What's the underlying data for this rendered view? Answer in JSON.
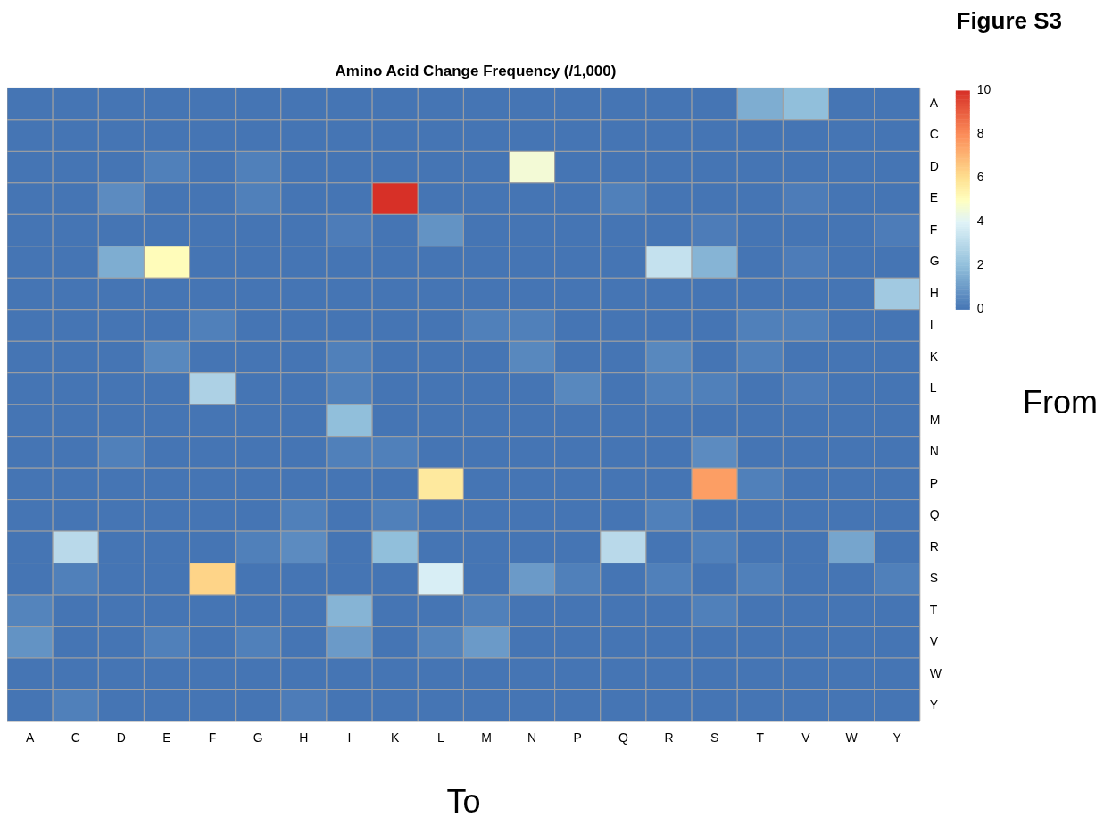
{
  "chart_data": {
    "type": "heatmap",
    "title": "Amino Acid Change Frequency (/1,000)",
    "xlabel": "To",
    "ylabel": "From",
    "annotations": [
      "Figure S3"
    ],
    "categories": [
      "A",
      "C",
      "D",
      "E",
      "F",
      "G",
      "H",
      "I",
      "K",
      "L",
      "M",
      "N",
      "P",
      "Q",
      "R",
      "S",
      "T",
      "V",
      "W",
      "Y"
    ],
    "y_categories": [
      "A",
      "C",
      "D",
      "E",
      "F",
      "G",
      "H",
      "I",
      "K",
      "L",
      "M",
      "N",
      "P",
      "Q",
      "R",
      "S",
      "T",
      "V",
      "W",
      "Y"
    ],
    "cells": [
      [
        0,
        0,
        0,
        0,
        0,
        0,
        0,
        0,
        0,
        0,
        0,
        0,
        0,
        0,
        0,
        0,
        1.5,
        2,
        0,
        0
      ],
      [
        0,
        0,
        0,
        0,
        0,
        0,
        0,
        0,
        0,
        0,
        0,
        0,
        0,
        0,
        0,
        0,
        0,
        0,
        0,
        0
      ],
      [
        0,
        0,
        0,
        0.3,
        0,
        0.3,
        0,
        0,
        0,
        0,
        0,
        4.6,
        0,
        0,
        0,
        0,
        0,
        0,
        0,
        0
      ],
      [
        0,
        0,
        0.6,
        0,
        0,
        0.3,
        0,
        0,
        10,
        0,
        0,
        0,
        0,
        0.3,
        0,
        0,
        0,
        0.2,
        0,
        0
      ],
      [
        0,
        0,
        0,
        0,
        0,
        0,
        0,
        0.2,
        0,
        0.8,
        0,
        0,
        0,
        0,
        0,
        0.2,
        0,
        0,
        0,
        0.2
      ],
      [
        0,
        0,
        1.5,
        5.1,
        0,
        0,
        0,
        0,
        0,
        0,
        0,
        0,
        0,
        0,
        3.3,
        1.7,
        0,
        0.2,
        0,
        0
      ],
      [
        0,
        0,
        0,
        0,
        0,
        0,
        0,
        0,
        0,
        0,
        0,
        0,
        0,
        0,
        0,
        0,
        0,
        0,
        0,
        2.4
      ],
      [
        0,
        0,
        0,
        0,
        0.3,
        0,
        0,
        0,
        0,
        0,
        0.3,
        0.3,
        0,
        0,
        0,
        0,
        0.3,
        0.3,
        0,
        0
      ],
      [
        0,
        0,
        0,
        0.5,
        0,
        0,
        0,
        0.3,
        0,
        0,
        0,
        0.5,
        0,
        0,
        0.5,
        0,
        0.3,
        0,
        0,
        0
      ],
      [
        0,
        0,
        0,
        0,
        2.7,
        0,
        0,
        0.3,
        0,
        0,
        0,
        0,
        0.5,
        0,
        0.3,
        0.3,
        0,
        0.2,
        0,
        0
      ],
      [
        0,
        0,
        0,
        0,
        0,
        0,
        0,
        2,
        0,
        0,
        0,
        0,
        0,
        0,
        0,
        0,
        0,
        0,
        0,
        0
      ],
      [
        0,
        0,
        0.3,
        0,
        0,
        0,
        0,
        0.3,
        0.3,
        0,
        0,
        0,
        0,
        0,
        0,
        0.6,
        0,
        0,
        0,
        0
      ],
      [
        0,
        0,
        0,
        0,
        0,
        0,
        0,
        0,
        0,
        5.7,
        0,
        0,
        0,
        0,
        0,
        7.6,
        0.3,
        0,
        0,
        0
      ],
      [
        0,
        0,
        0,
        0,
        0,
        0,
        0.3,
        0,
        0.3,
        0,
        0,
        0,
        0,
        0,
        0.3,
        0,
        0,
        0,
        0,
        0
      ],
      [
        0,
        3,
        0,
        0,
        0,
        0.3,
        0.6,
        0,
        2,
        0,
        0,
        0,
        0,
        3,
        0,
        0.3,
        0,
        0,
        1.3,
        0
      ],
      [
        0,
        0.3,
        0,
        0,
        6.3,
        0,
        0,
        0,
        0,
        3.8,
        0,
        1,
        0.3,
        0,
        0.3,
        0,
        0.3,
        0,
        0,
        0.3
      ],
      [
        0.4,
        0,
        0,
        0,
        0,
        0,
        0,
        1.7,
        0,
        0,
        0.3,
        0,
        0,
        0,
        0,
        0.3,
        0,
        0,
        0,
        0
      ],
      [
        0.8,
        0,
        0,
        0.3,
        0,
        0.3,
        0,
        1,
        0,
        0.4,
        1,
        0,
        0,
        0,
        0,
        0,
        0,
        0,
        0,
        0
      ],
      [
        0,
        0,
        0,
        0,
        0,
        0,
        0,
        0,
        0,
        0,
        0,
        0,
        0,
        0,
        0,
        0,
        0,
        0,
        0,
        0
      ],
      [
        0,
        0.3,
        0,
        0,
        0,
        0,
        0.2,
        0,
        0,
        0,
        0,
        0,
        0,
        0,
        0,
        0,
        0,
        0,
        0,
        0
      ]
    ],
    "clim": [
      0,
      10
    ],
    "cticks": [
      0,
      2,
      4,
      6,
      8,
      10
    ]
  }
}
